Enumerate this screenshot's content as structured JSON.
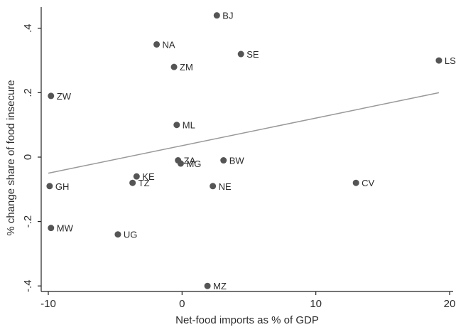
{
  "chart_data": {
    "type": "scatter",
    "xlabel": "Net-food imports as % of GDP",
    "ylabel": "% change share of food insecure",
    "xlim": [
      -10,
      20
    ],
    "ylim": [
      -0.4,
      0.45
    ],
    "x_ticks": [
      -10,
      0,
      10,
      20
    ],
    "x_tick_labels": [
      "-10",
      "0",
      "10",
      "20"
    ],
    "y_ticks": [
      -0.4,
      -0.2,
      0,
      0.2,
      0.4
    ],
    "y_tick_labels": [
      "-.4",
      "-.2",
      "0",
      ".2",
      ".4"
    ],
    "grid": false,
    "points": [
      {
        "label": "BJ",
        "x": 2.6,
        "y": 0.44
      },
      {
        "label": "NA",
        "x": -1.9,
        "y": 0.35
      },
      {
        "label": "SE",
        "x": 4.4,
        "y": 0.32
      },
      {
        "label": "ZM",
        "x": -0.6,
        "y": 0.28
      },
      {
        "label": "LS",
        "x": 19.2,
        "y": 0.3
      },
      {
        "label": "ZW",
        "x": -9.8,
        "y": 0.19
      },
      {
        "label": "ML",
        "x": -0.4,
        "y": 0.1
      },
      {
        "label": "ZA",
        "x": -0.3,
        "y": -0.01
      },
      {
        "label": "MG",
        "x": -0.1,
        "y": -0.02
      },
      {
        "label": "BW",
        "x": 3.1,
        "y": -0.01
      },
      {
        "label": "KE",
        "x": -3.4,
        "y": -0.06
      },
      {
        "label": "TZ",
        "x": -3.7,
        "y": -0.08
      },
      {
        "label": "GH",
        "x": -9.9,
        "y": -0.09
      },
      {
        "label": "NE",
        "x": 2.3,
        "y": -0.09
      },
      {
        "label": "CV",
        "x": 13.0,
        "y": -0.08
      },
      {
        "label": "MW",
        "x": -9.8,
        "y": -0.22
      },
      {
        "label": "UG",
        "x": -4.8,
        "y": -0.24
      },
      {
        "label": "MZ",
        "x": 1.9,
        "y": -0.4
      }
    ],
    "fit_line": {
      "x": [
        -10,
        19.2
      ],
      "y": [
        -0.05,
        0.2
      ]
    },
    "colors": {
      "marker": "#555555",
      "fit_line": "#999999",
      "axis": "#222222",
      "text": "#2b2b2b"
    }
  }
}
